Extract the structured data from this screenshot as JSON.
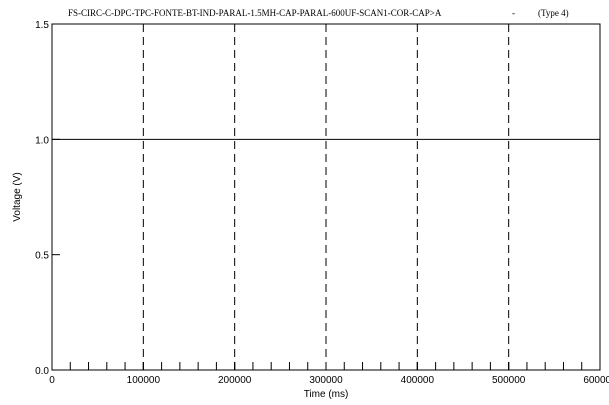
{
  "chart_data": {
    "type": "line",
    "title": "FS-CIRC-C-DPC-TPC-FONTE-BT-IND-PARAL-1.5MH-CAP-PARAL-600UF-SCAN1-COR-CAP>A",
    "title_suffix": "-",
    "type_label": "(Type 4)",
    "xlabel": "Time (ms)",
    "ylabel": "Voltage (V)",
    "xlim": [
      0,
      600000
    ],
    "ylim": [
      0,
      1.5
    ],
    "x_ticks": [
      0,
      100000,
      200000,
      300000,
      400000,
      500000,
      600000
    ],
    "x_tick_labels": [
      "0",
      "100000",
      "200000",
      "300000",
      "400000",
      "500000",
      "600000"
    ],
    "y_ticks": [
      0,
      0.5,
      1.0,
      1.5
    ],
    "y_tick_labels": [
      "0.0",
      "0.5",
      "1.0",
      "1.5"
    ],
    "x_minor_step": 20000,
    "vertical_dashed_lines": [
      100000,
      200000,
      300000,
      400000,
      500000
    ],
    "series": [
      {
        "x": [
          0,
          600000
        ],
        "values": [
          1.0,
          1.0
        ],
        "color": "#000000"
      }
    ],
    "grid": false,
    "legend": "none"
  }
}
